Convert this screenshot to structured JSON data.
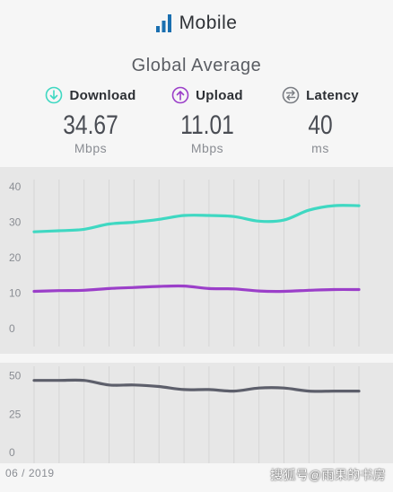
{
  "header": {
    "title": "Mobile",
    "title_icon": "signal-bars-icon",
    "subtitle": "Global Average"
  },
  "metrics": [
    {
      "label": "Download",
      "value": "34.67",
      "unit": "Mbps",
      "icon": "download-arrow-icon",
      "color": "#3fd8c2"
    },
    {
      "label": "Upload",
      "value": "11.01",
      "unit": "Mbps",
      "icon": "upload-arrow-icon",
      "color": "#9b3fc9"
    },
    {
      "label": "Latency",
      "value": "40",
      "unit": "ms",
      "icon": "latency-arrows-icon",
      "color": "#7a7d83"
    }
  ],
  "footer": {
    "date_label": "06 / 2019",
    "watermark": "搜狐号@雨果的书房"
  },
  "colors": {
    "download": "#3fd8c2",
    "upload": "#9b3fc9",
    "latency": "#5d5f6b",
    "accent": "#1a6fb0"
  },
  "chart_data": [
    {
      "type": "line",
      "x": [
        0,
        1,
        2,
        3,
        4,
        5,
        6,
        7,
        8,
        9,
        10,
        11,
        12,
        13
      ],
      "ylim": [
        0,
        40
      ],
      "yticks": [
        "0",
        "10",
        "20",
        "30",
        "40"
      ],
      "grid": true,
      "series": [
        {
          "name": "Download",
          "values": [
            27.3,
            27.6,
            28.0,
            29.5,
            30.0,
            30.8,
            31.9,
            31.9,
            31.6,
            30.3,
            30.6,
            33.4,
            34.67,
            34.67
          ]
        },
        {
          "name": "Upload",
          "values": [
            10.5,
            10.7,
            10.8,
            11.3,
            11.6,
            11.9,
            12.0,
            11.3,
            11.2,
            10.6,
            10.5,
            10.8,
            11.01,
            11.01
          ]
        }
      ]
    },
    {
      "type": "line",
      "x": [
        0,
        1,
        2,
        3,
        4,
        5,
        6,
        7,
        8,
        9,
        10,
        11,
        12,
        13
      ],
      "ylim": [
        0,
        55
      ],
      "yticks": [
        "0",
        "25",
        "50"
      ],
      "grid": true,
      "series": [
        {
          "name": "Latency",
          "values": [
            47,
            47,
            47,
            44,
            44,
            43,
            41,
            41,
            40,
            42,
            42,
            40,
            40,
            40
          ]
        }
      ]
    }
  ]
}
